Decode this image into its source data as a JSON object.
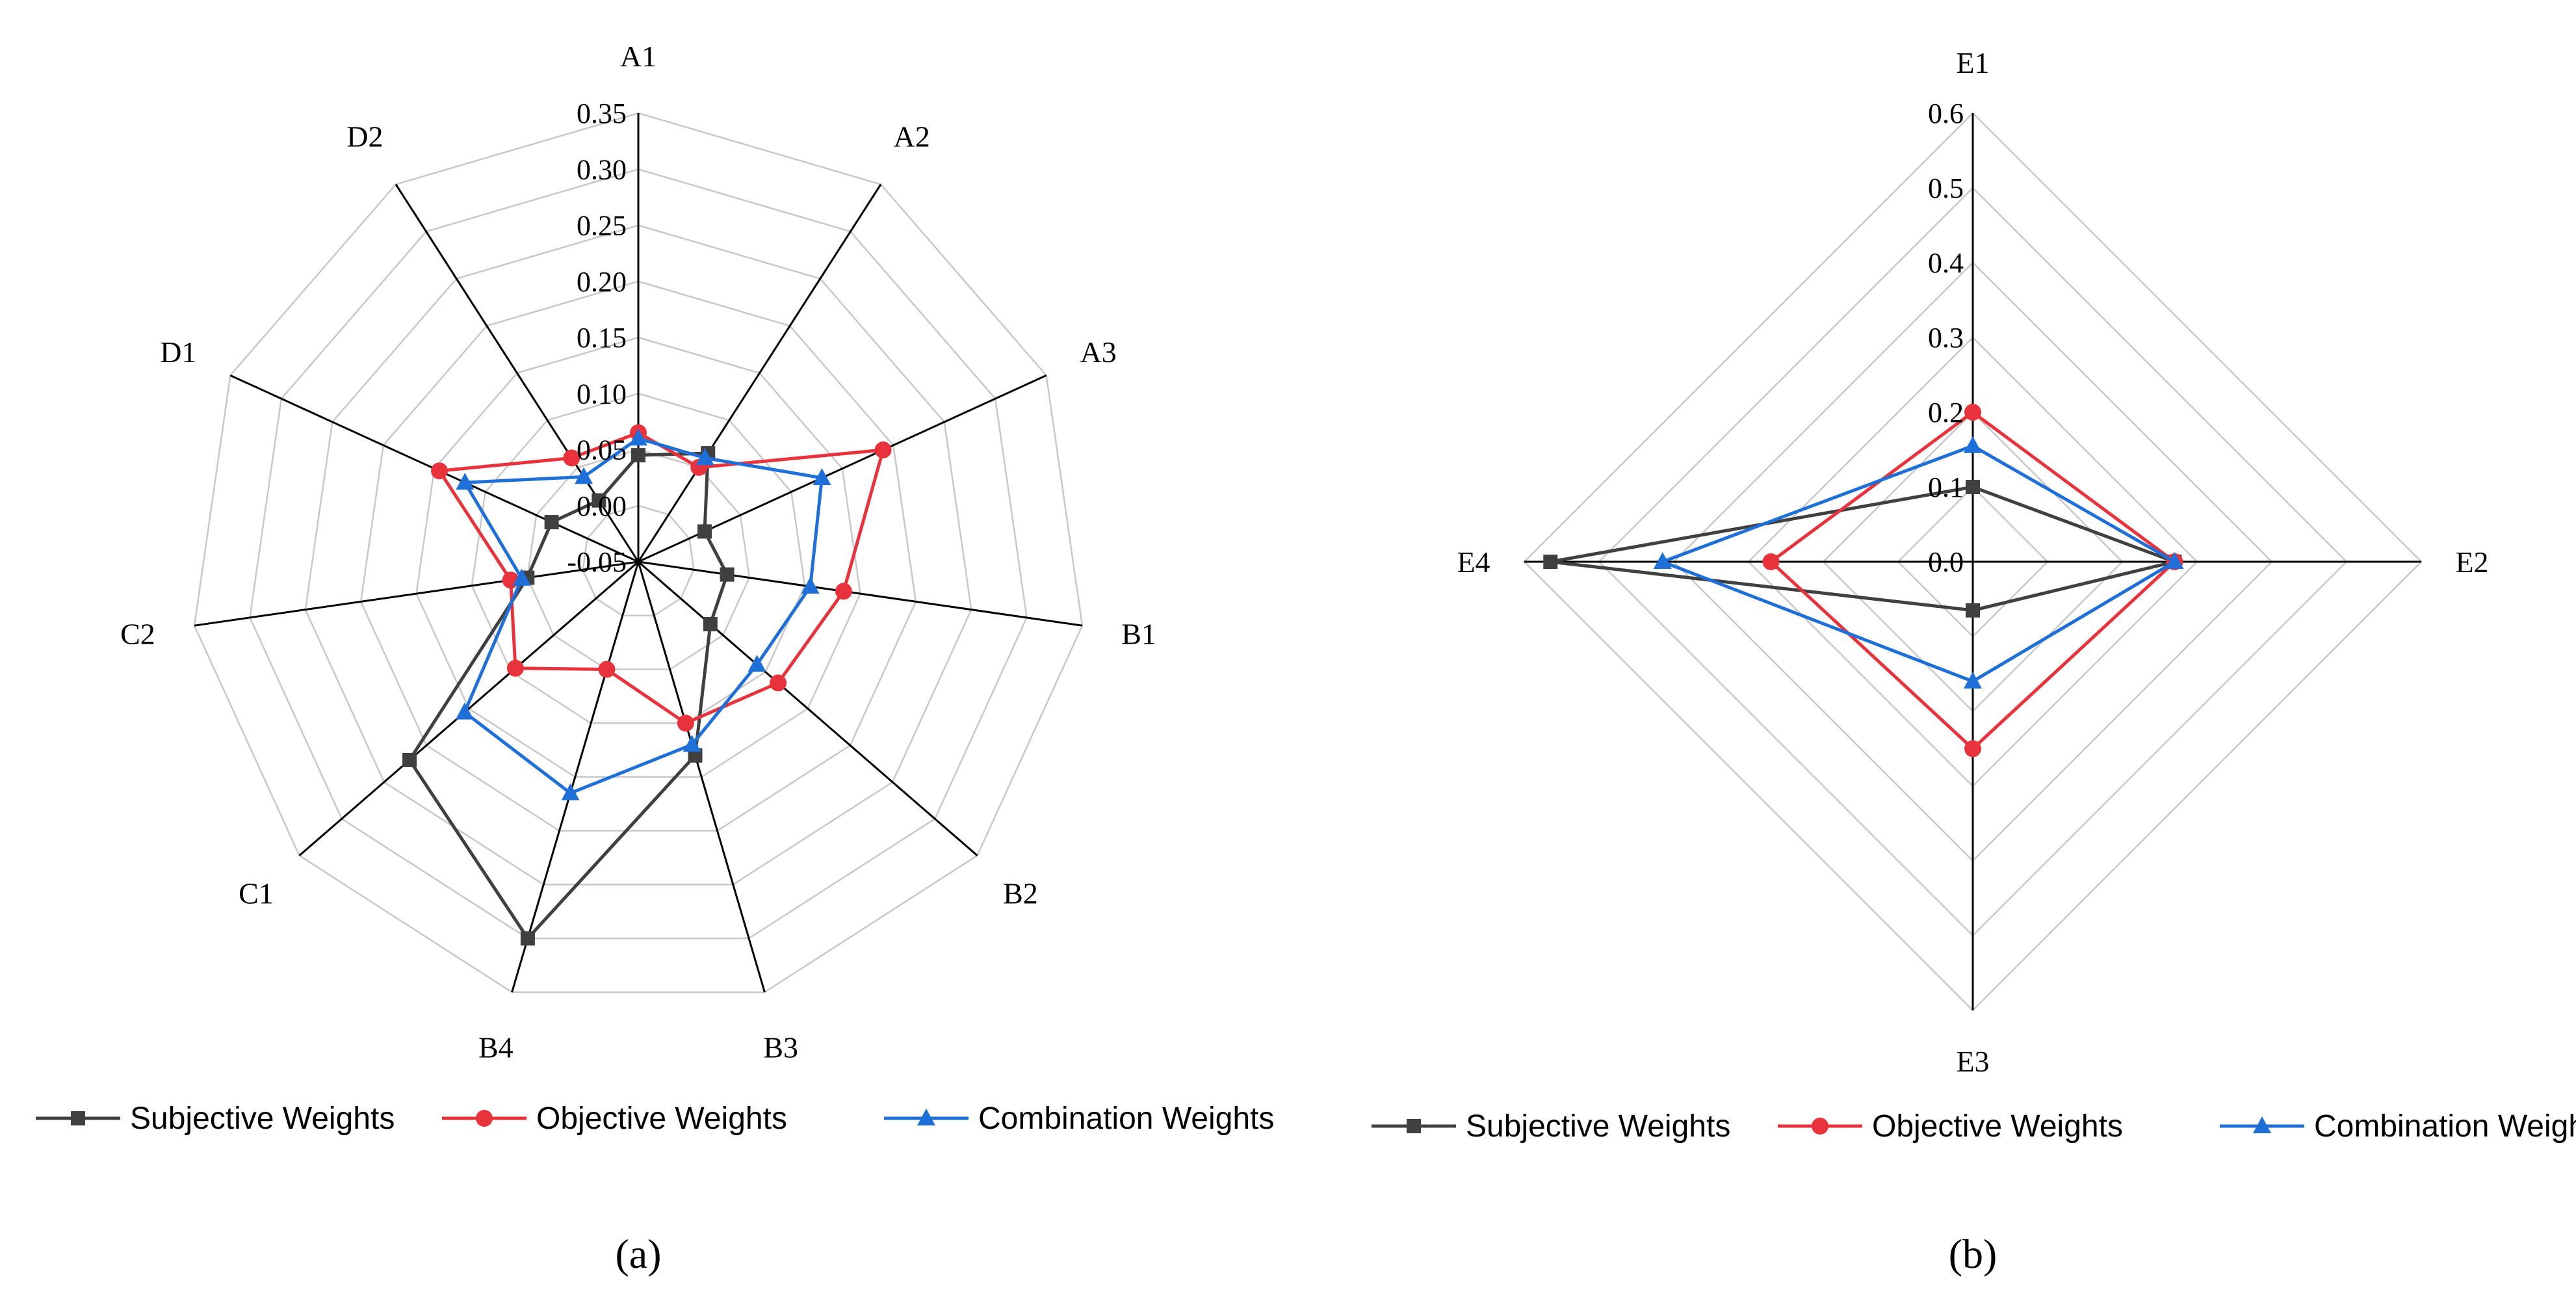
{
  "chart_data": [
    {
      "type": "radar",
      "panel_label": "(a)",
      "categories": [
        "A1",
        "A2",
        "A3",
        "B1",
        "B2",
        "B3",
        "B4",
        "C1",
        "C2",
        "D1",
        "D2"
      ],
      "radial_ticks": [
        "-0.05",
        "0.00",
        "0.05",
        "0.10",
        "0.15",
        "0.20",
        "0.25",
        "0.30",
        "0.35"
      ],
      "rmin": -0.05,
      "rmax": 0.35,
      "series": [
        {
          "name": "Subjective Weights",
          "color": "#404040",
          "marker": "square",
          "values": [
            0.045,
            0.065,
            0.015,
            0.03,
            0.035,
            0.13,
            0.3,
            0.22,
            0.05,
            0.035,
            0.015
          ]
        },
        {
          "name": "Objective Weights",
          "color": "#e8323c",
          "marker": "circle",
          "values": [
            0.065,
            0.05,
            0.19,
            0.135,
            0.115,
            0.1,
            0.05,
            0.095,
            0.065,
            0.145,
            0.06
          ]
        },
        {
          "name": "Combination Weights",
          "color": "#1f6fd9",
          "marker": "triangle",
          "values": [
            0.06,
            0.06,
            0.13,
            0.105,
            0.09,
            0.12,
            0.165,
            0.155,
            0.055,
            0.12,
            0.04
          ]
        }
      ]
    },
    {
      "type": "radar",
      "panel_label": "(b)",
      "categories": [
        "E1",
        "E2",
        "E3",
        "E4"
      ],
      "radial_ticks": [
        "0.0",
        "0.1",
        "0.2",
        "0.3",
        "0.4",
        "0.5",
        "0.6"
      ],
      "rmin": 0,
      "rmax": 0.6,
      "series": [
        {
          "name": "Subjective Weights",
          "color": "#404040",
          "marker": "square",
          "values": [
            0.1,
            0.27,
            0.065,
            0.565
          ]
        },
        {
          "name": "Objective Weights",
          "color": "#e8323c",
          "marker": "circle",
          "values": [
            0.2,
            0.27,
            0.25,
            0.27
          ]
        },
        {
          "name": "Combination Weights",
          "color": "#1f6fd9",
          "marker": "triangle",
          "values": [
            0.155,
            0.27,
            0.16,
            0.415
          ]
        }
      ]
    }
  ]
}
